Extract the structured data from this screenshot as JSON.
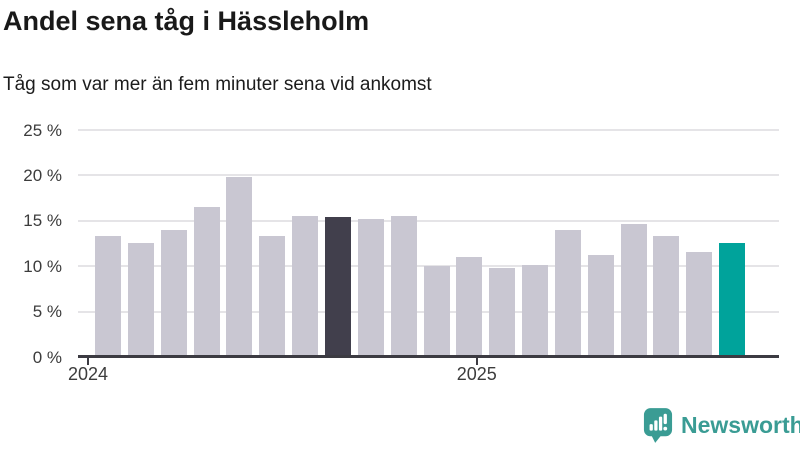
{
  "chart_data": {
    "type": "bar",
    "title": "Andel sena tåg i Hässleholm",
    "subtitle": "Tåg som var mer än fem minuter sena vid ankomst",
    "unit": "%",
    "ylim": [
      0,
      25
    ],
    "grid": true,
    "legend": false,
    "y_ticks": [
      {
        "value": 0,
        "label": "0 %"
      },
      {
        "value": 5,
        "label": "5 %"
      },
      {
        "value": 10,
        "label": "10 %"
      },
      {
        "value": 15,
        "label": "15 %"
      },
      {
        "value": 20,
        "label": "20 %"
      },
      {
        "value": 25,
        "label": "25 %"
      }
    ],
    "x_ticks": [
      {
        "index": 0,
        "label": "2024"
      },
      {
        "index": 12,
        "label": "2025"
      }
    ],
    "categories": [
      "2024-01",
      "2024-02",
      "2024-03",
      "2024-04",
      "2024-05",
      "2024-06",
      "2024-07",
      "2024-08",
      "2024-09",
      "2024-10",
      "2024-11",
      "2024-12",
      "2025-01",
      "2025-02",
      "2025-03",
      "2025-04",
      "2025-05",
      "2025-06",
      "2025-07",
      "2025-08"
    ],
    "values": [
      13.3,
      12.6,
      14.0,
      16.5,
      19.8,
      13.3,
      15.5,
      15.4,
      15.2,
      15.5,
      10.0,
      11.0,
      9.8,
      10.1,
      14.0,
      11.2,
      14.7,
      13.3,
      11.6,
      12.6
    ],
    "highlight": {
      "dark_index": 7,
      "accent_index": 19
    },
    "colors": {
      "bar": "#c9c7d2",
      "bar_dark": "#413f4c",
      "bar_accent": "#00a39b",
      "gridline": "#e5e4e7",
      "axis": "#3c3b42"
    }
  },
  "branding": {
    "logo_text": "Newsworthy",
    "logo_color": "#3a9c94"
  }
}
